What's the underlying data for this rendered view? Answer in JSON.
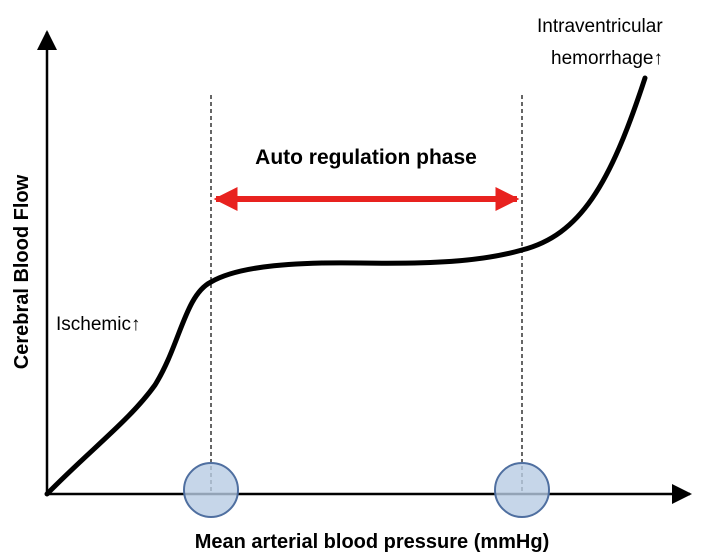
{
  "diagram": {
    "y_axis_label": "Cerebral Blood Flow",
    "x_axis_label": "Mean arterial blood pressure (mmHg)",
    "phase_label": "Auto regulation phase",
    "left_annotation": "Ischemic↑",
    "right_annotation": [
      "Intraventricular",
      "hemorrhage↑"
    ]
  }
}
